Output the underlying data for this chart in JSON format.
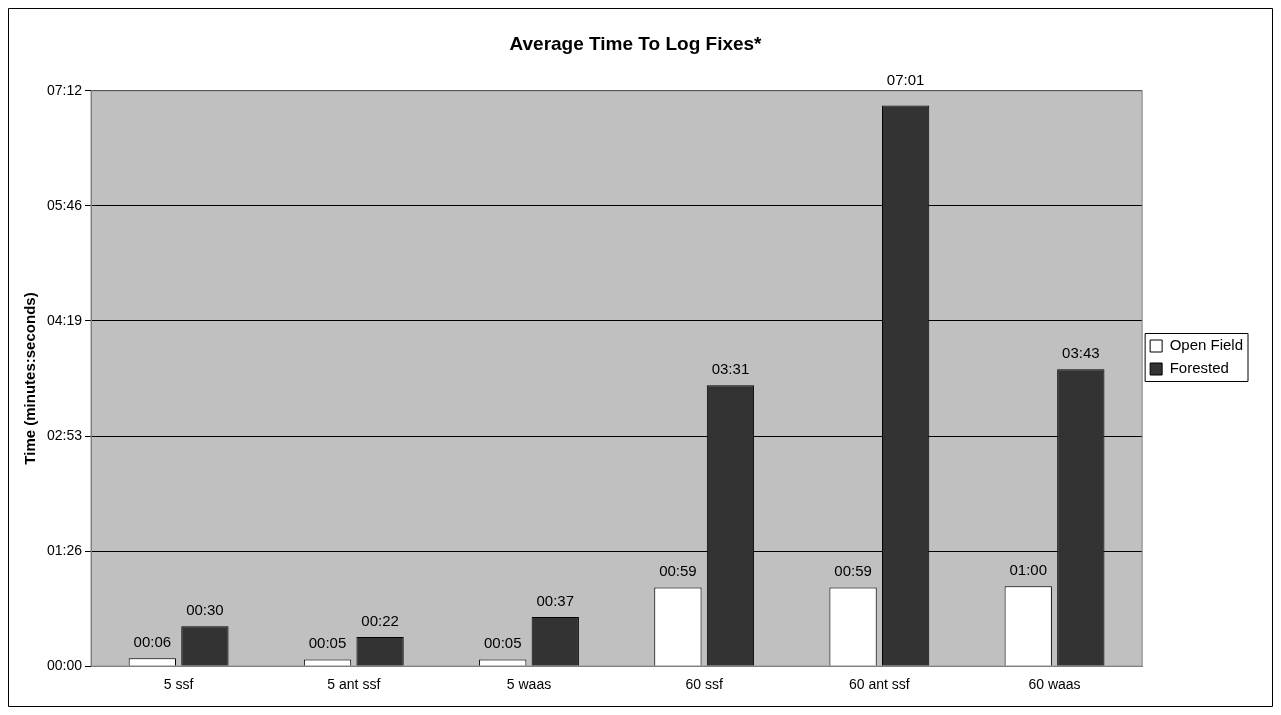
{
  "chart_data": {
    "type": "bar",
    "title": "Average Time To Log Fixes*",
    "ylabel": "Time (minutes:seconds)",
    "categories": [
      "5 ssf",
      "5 ant ssf",
      "5 waas",
      "60 ssf",
      "60 ant ssf",
      "60 waas"
    ],
    "series": [
      {
        "name": "Open Field",
        "color": "#ffffff",
        "values": [
          6,
          5,
          5,
          59,
          59,
          60
        ],
        "value_labels": [
          "00:06",
          "00:05",
          "00:05",
          "00:59",
          "00:59",
          "01:00"
        ]
      },
      {
        "name": "Forested",
        "color": "#333333",
        "values": [
          30,
          22,
          37,
          211,
          421,
          223
        ],
        "value_labels": [
          "00:30",
          "00:22",
          "00:37",
          "03:31",
          "07:01",
          "03:43"
        ]
      }
    ],
    "ylim": [
      0,
      432
    ],
    "yticks": [
      {
        "value": 0,
        "label": "00:00"
      },
      {
        "value": 86.4,
        "label": "01:26"
      },
      {
        "value": 172.8,
        "label": "02:53"
      },
      {
        "value": 259.2,
        "label": "04:19"
      },
      {
        "value": 345.6,
        "label": "05:46"
      },
      {
        "value": 432,
        "label": "07:12"
      }
    ],
    "grid": "y",
    "legend": "right"
  }
}
